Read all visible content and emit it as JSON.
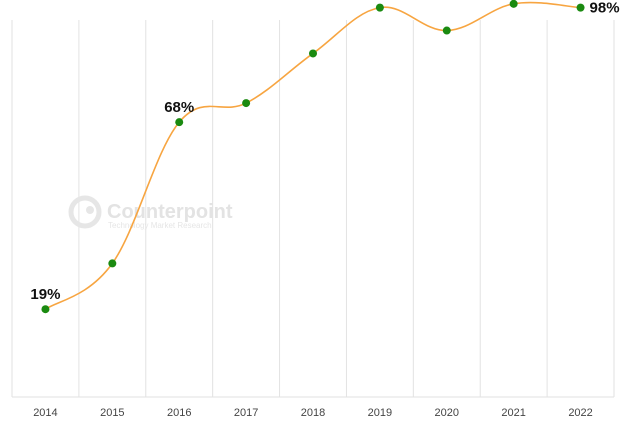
{
  "chart_data": {
    "type": "line",
    "x": [
      "2014",
      "2015",
      "2016",
      "2017",
      "2018",
      "2019",
      "2020",
      "2021",
      "2022"
    ],
    "values": [
      19,
      31,
      68,
      73,
      86,
      98,
      92,
      99,
      98
    ],
    "data_labels": [
      {
        "index": 0,
        "text": "19%"
      },
      {
        "index": 2,
        "text": "68%"
      },
      {
        "index": 8,
        "text": "98%"
      }
    ],
    "ylim": [
      -4,
      100
    ],
    "grid": "vertical",
    "colors": {
      "line": "#f7a541",
      "marker": "#1a8a10",
      "grid": "#e2e2e2"
    }
  },
  "watermark": {
    "name": "Counterpoint",
    "tagline": "Technology Market Research"
  }
}
